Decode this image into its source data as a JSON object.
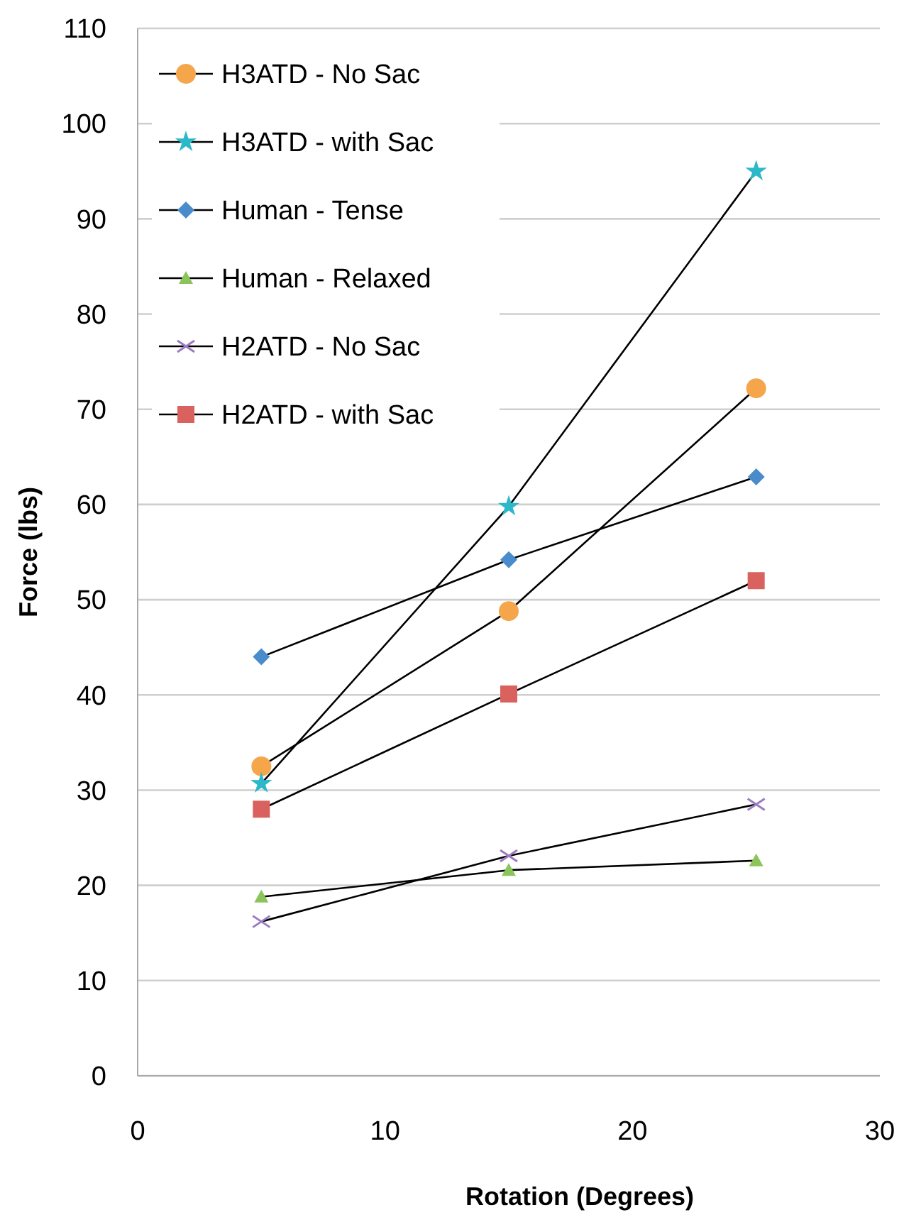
{
  "chart_data": {
    "type": "line",
    "xlabel": "Rotation (Degrees)",
    "ylabel": "Force (lbs)",
    "x": [
      5,
      15,
      25
    ],
    "xlim": [
      0,
      30
    ],
    "xticks": [
      0,
      10,
      20,
      30
    ],
    "ylim": [
      0,
      110
    ],
    "yticks": [
      0,
      10,
      20,
      30,
      40,
      50,
      60,
      70,
      80,
      90,
      100,
      110
    ],
    "grid": "y",
    "legend": "top left",
    "series": [
      {
        "name": "H3ATD - No Sac",
        "color": "#f5a54a",
        "marker": "circle",
        "values": [
          32.5,
          48.8,
          72.2
        ]
      },
      {
        "name": "H3ATD - with Sac",
        "color": "#2cb8c8",
        "marker": "star",
        "values": [
          30.7,
          59.8,
          95
        ]
      },
      {
        "name": "Human - Tense",
        "color": "#4a8ccb",
        "marker": "diamond",
        "values": [
          44,
          54.2,
          62.9
        ]
      },
      {
        "name": "Human - Relaxed",
        "color": "#8bc45a",
        "marker": "triangle",
        "values": [
          18.8,
          21.6,
          22.6
        ]
      },
      {
        "name": "H2ATD - No Sac",
        "color": "#9b7bbd",
        "marker": "cross",
        "values": [
          16.2,
          23.1,
          28.5
        ]
      },
      {
        "name": "H2ATD - with Sac",
        "color": "#d9625e",
        "marker": "square",
        "values": [
          28,
          40.1,
          52
        ]
      }
    ]
  }
}
